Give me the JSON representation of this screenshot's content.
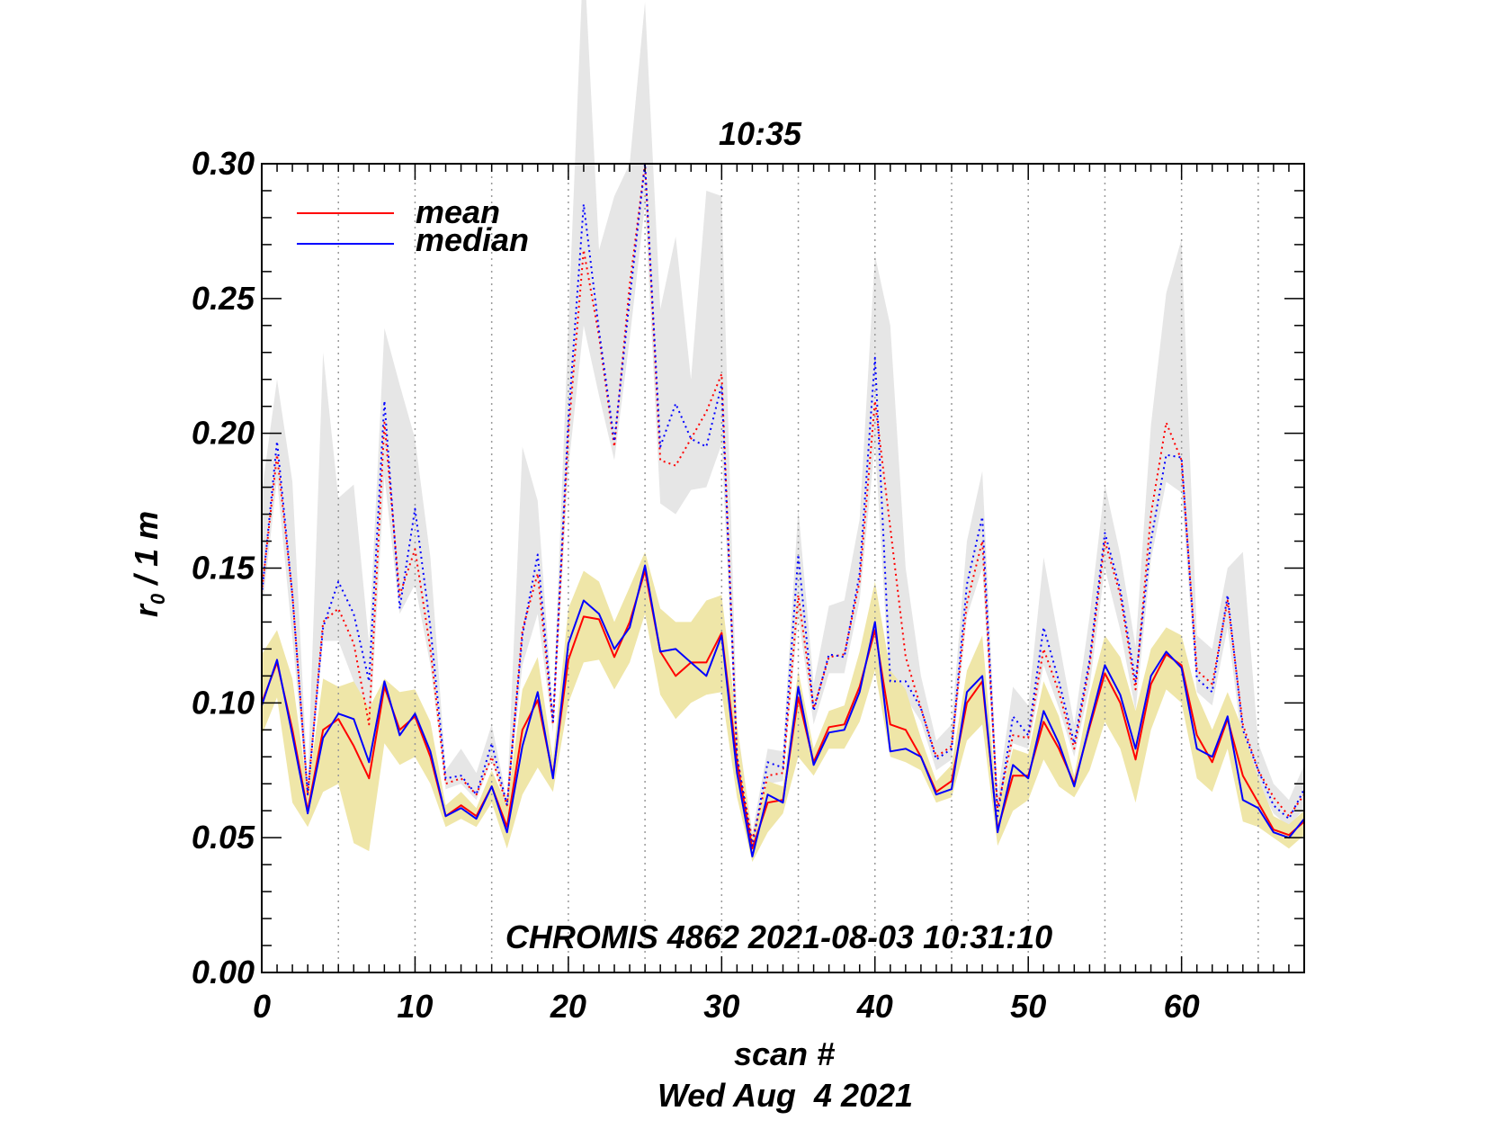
{
  "chart_data": {
    "type": "line",
    "title": "10:35",
    "xlabel": "scan #",
    "date_label": "Wed Aug  4 2021",
    "ylabel_main": "r",
    "ylabel_sub": "0",
    "ylabel_rest": " / 1 m",
    "annotation": "CHROMIS 4862 2021-08-03 10:31:10",
    "xlim": [
      0,
      68
    ],
    "ylim": [
      0.0,
      0.3
    ],
    "x_ticks": [
      0,
      10,
      20,
      30,
      40,
      50,
      60
    ],
    "x_tick_labels": [
      "0",
      "10",
      "20",
      "30",
      "40",
      "50",
      "60"
    ],
    "y_ticks": [
      0.0,
      0.05,
      0.1,
      0.15,
      0.2,
      0.25,
      0.3
    ],
    "y_tick_labels": [
      "0.00",
      "0.05",
      "0.10",
      "0.15",
      "0.20",
      "0.25",
      "0.30"
    ],
    "vertical_gridlines_x": [
      5,
      10,
      15,
      20,
      25,
      30,
      35,
      40,
      45,
      50,
      55,
      60,
      65
    ],
    "legend": {
      "placement": "top-left",
      "entries": [
        {
          "label": "mean",
          "color": "#ff0000"
        },
        {
          "label": "median",
          "color": "#0000ff"
        }
      ]
    },
    "colors": {
      "mean": "#ff0000",
      "median": "#0000ff",
      "band_lower": "#efe6a8",
      "band_upper": "#e6e6e6",
      "grid": "#9a9a9a"
    },
    "x": [
      0,
      1,
      2,
      3,
      4,
      5,
      6,
      7,
      8,
      9,
      10,
      11,
      12,
      13,
      14,
      15,
      16,
      17,
      18,
      19,
      20,
      21,
      22,
      23,
      24,
      25,
      26,
      27,
      28,
      29,
      30,
      31,
      32,
      33,
      34,
      35,
      36,
      37,
      38,
      39,
      40,
      41,
      42,
      43,
      44,
      45,
      46,
      47,
      48,
      49,
      50,
      51,
      52,
      53,
      54,
      55,
      56,
      57,
      58,
      59,
      60,
      61,
      62,
      63,
      64,
      65,
      66,
      67,
      68
    ],
    "series": [
      {
        "name": "mean",
        "style": "solid",
        "color": "#ff0000",
        "values": [
          0.1,
          0.115,
          0.09,
          0.06,
          0.09,
          0.094,
          0.084,
          0.072,
          0.106,
          0.09,
          0.095,
          0.08,
          0.058,
          0.062,
          0.058,
          0.069,
          0.054,
          0.09,
          0.101,
          0.073,
          0.116,
          0.132,
          0.131,
          0.117,
          0.13,
          0.149,
          0.119,
          0.11,
          0.115,
          0.115,
          0.126,
          0.078,
          0.046,
          0.063,
          0.064,
          0.102,
          0.078,
          0.091,
          0.092,
          0.106,
          0.127,
          0.092,
          0.09,
          0.08,
          0.067,
          0.071,
          0.1,
          0.108,
          0.053,
          0.073,
          0.073,
          0.093,
          0.083,
          0.07,
          0.091,
          0.111,
          0.1,
          0.079,
          0.107,
          0.118,
          0.114,
          0.088,
          0.078,
          0.094,
          0.073,
          0.063,
          0.053,
          0.051,
          0.056
        ]
      },
      {
        "name": "median",
        "style": "solid",
        "color": "#0000ff",
        "values": [
          0.099,
          0.116,
          0.088,
          0.059,
          0.087,
          0.096,
          0.094,
          0.078,
          0.108,
          0.088,
          0.096,
          0.082,
          0.058,
          0.061,
          0.057,
          0.069,
          0.052,
          0.084,
          0.104,
          0.072,
          0.122,
          0.138,
          0.133,
          0.12,
          0.128,
          0.151,
          0.119,
          0.12,
          0.115,
          0.11,
          0.125,
          0.074,
          0.043,
          0.066,
          0.063,
          0.106,
          0.077,
          0.089,
          0.09,
          0.104,
          0.13,
          0.082,
          0.083,
          0.08,
          0.066,
          0.068,
          0.104,
          0.11,
          0.052,
          0.077,
          0.072,
          0.097,
          0.085,
          0.069,
          0.092,
          0.114,
          0.103,
          0.083,
          0.11,
          0.119,
          0.113,
          0.083,
          0.08,
          0.095,
          0.064,
          0.061,
          0.052,
          0.05,
          0.057
        ]
      },
      {
        "name": "mean-upper",
        "style": "dotted",
        "color": "#ff0000",
        "values": [
          0.141,
          0.192,
          0.14,
          0.066,
          0.13,
          0.135,
          0.122,
          0.092,
          0.204,
          0.14,
          0.157,
          0.12,
          0.07,
          0.072,
          0.066,
          0.08,
          0.062,
          0.127,
          0.148,
          0.092,
          0.2,
          0.268,
          0.236,
          0.195,
          0.255,
          0.3,
          0.19,
          0.188,
          0.198,
          0.208,
          0.222,
          0.08,
          0.049,
          0.073,
          0.074,
          0.14,
          0.098,
          0.117,
          0.118,
          0.145,
          0.212,
          0.165,
          0.117,
          0.098,
          0.08,
          0.084,
          0.137,
          0.16,
          0.061,
          0.088,
          0.087,
          0.12,
          0.104,
          0.083,
          0.114,
          0.16,
          0.14,
          0.105,
          0.17,
          0.204,
          0.19,
          0.112,
          0.107,
          0.138,
          0.092,
          0.075,
          0.065,
          0.058,
          0.066
        ]
      },
      {
        "name": "median-upper",
        "style": "dotted",
        "color": "#0000ff",
        "values": [
          0.14,
          0.197,
          0.14,
          0.066,
          0.128,
          0.145,
          0.133,
          0.108,
          0.212,
          0.135,
          0.172,
          0.128,
          0.072,
          0.073,
          0.066,
          0.085,
          0.062,
          0.125,
          0.155,
          0.093,
          0.205,
          0.285,
          0.238,
          0.197,
          0.25,
          0.3,
          0.195,
          0.211,
          0.198,
          0.195,
          0.218,
          0.08,
          0.047,
          0.078,
          0.076,
          0.155,
          0.097,
          0.118,
          0.117,
          0.148,
          0.228,
          0.108,
          0.108,
          0.098,
          0.079,
          0.083,
          0.144,
          0.169,
          0.058,
          0.095,
          0.088,
          0.128,
          0.108,
          0.085,
          0.116,
          0.163,
          0.142,
          0.108,
          0.16,
          0.192,
          0.191,
          0.109,
          0.104,
          0.14,
          0.09,
          0.075,
          0.062,
          0.057,
          0.068
        ]
      },
      {
        "name": "band-lower-low",
        "style": "fill",
        "color": "#efe6a8",
        "values": [
          0.088,
          0.102,
          0.063,
          0.054,
          0.067,
          0.07,
          0.048,
          0.045,
          0.085,
          0.077,
          0.08,
          0.07,
          0.054,
          0.057,
          0.054,
          0.063,
          0.046,
          0.066,
          0.076,
          0.067,
          0.1,
          0.115,
          0.116,
          0.105,
          0.115,
          0.133,
          0.103,
          0.094,
          0.1,
          0.103,
          0.104,
          0.065,
          0.041,
          0.052,
          0.059,
          0.08,
          0.073,
          0.083,
          0.083,
          0.093,
          0.112,
          0.08,
          0.078,
          0.075,
          0.063,
          0.065,
          0.086,
          0.092,
          0.047,
          0.06,
          0.064,
          0.079,
          0.069,
          0.065,
          0.075,
          0.093,
          0.083,
          0.063,
          0.09,
          0.105,
          0.1,
          0.072,
          0.067,
          0.083,
          0.056,
          0.054,
          0.05,
          0.046,
          0.051
        ]
      },
      {
        "name": "band-lower-high",
        "style": "fill",
        "color": "#efe6a8",
        "values": [
          0.118,
          0.127,
          0.109,
          0.067,
          0.109,
          0.106,
          0.108,
          0.098,
          0.109,
          0.104,
          0.105,
          0.093,
          0.062,
          0.067,
          0.061,
          0.075,
          0.062,
          0.105,
          0.117,
          0.079,
          0.135,
          0.149,
          0.145,
          0.13,
          0.143,
          0.156,
          0.135,
          0.13,
          0.13,
          0.138,
          0.14,
          0.092,
          0.05,
          0.071,
          0.069,
          0.112,
          0.083,
          0.097,
          0.099,
          0.119,
          0.145,
          0.112,
          0.105,
          0.087,
          0.071,
          0.077,
          0.112,
          0.125,
          0.06,
          0.083,
          0.081,
          0.108,
          0.095,
          0.073,
          0.103,
          0.125,
          0.117,
          0.097,
          0.12,
          0.128,
          0.125,
          0.103,
          0.09,
          0.104,
          0.09,
          0.072,
          0.058,
          0.055,
          0.06
        ]
      },
      {
        "name": "band-upper-low",
        "style": "fill",
        "color": "#e6e6e6",
        "values": [
          0.133,
          0.183,
          0.124,
          0.064,
          0.123,
          0.123,
          0.108,
          0.084,
          0.184,
          0.133,
          0.144,
          0.114,
          0.068,
          0.07,
          0.064,
          0.079,
          0.06,
          0.114,
          0.133,
          0.089,
          0.187,
          0.24,
          0.214,
          0.19,
          0.235,
          0.285,
          0.174,
          0.17,
          0.179,
          0.18,
          0.196,
          0.076,
          0.046,
          0.07,
          0.071,
          0.132,
          0.092,
          0.111,
          0.111,
          0.138,
          0.196,
          0.102,
          0.102,
          0.093,
          0.075,
          0.079,
          0.132,
          0.15,
          0.056,
          0.085,
          0.083,
          0.114,
          0.098,
          0.08,
          0.106,
          0.15,
          0.127,
          0.097,
          0.153,
          0.182,
          0.178,
          0.104,
          0.099,
          0.128,
          0.083,
          0.07,
          0.059,
          0.054,
          0.061
        ]
      },
      {
        "name": "band-upper-high",
        "style": "fill",
        "color": "#e6e6e6",
        "values": [
          0.178,
          0.22,
          0.182,
          0.07,
          0.23,
          0.176,
          0.181,
          0.122,
          0.239,
          0.218,
          0.198,
          0.154,
          0.075,
          0.083,
          0.074,
          0.092,
          0.064,
          0.195,
          0.175,
          0.096,
          0.24,
          0.38,
          0.268,
          0.288,
          0.3,
          0.36,
          0.246,
          0.273,
          0.22,
          0.29,
          0.288,
          0.092,
          0.052,
          0.083,
          0.082,
          0.172,
          0.107,
          0.136,
          0.138,
          0.168,
          0.266,
          0.24,
          0.15,
          0.11,
          0.086,
          0.092,
          0.16,
          0.186,
          0.066,
          0.106,
          0.099,
          0.154,
          0.123,
          0.092,
          0.132,
          0.181,
          0.155,
          0.121,
          0.203,
          0.252,
          0.272,
          0.125,
          0.12,
          0.15,
          0.156,
          0.085,
          0.07,
          0.064,
          0.077
        ]
      }
    ]
  }
}
